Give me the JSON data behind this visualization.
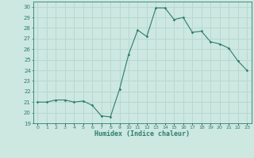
{
  "x": [
    0,
    1,
    2,
    3,
    4,
    5,
    6,
    7,
    8,
    9,
    10,
    11,
    12,
    13,
    14,
    15,
    16,
    17,
    18,
    19,
    20,
    21,
    22,
    23
  ],
  "y": [
    21.0,
    21.0,
    21.2,
    21.2,
    21.0,
    21.1,
    20.7,
    19.7,
    19.6,
    22.2,
    25.5,
    27.8,
    27.2,
    29.9,
    29.9,
    28.8,
    29.0,
    27.6,
    27.7,
    26.7,
    26.5,
    26.1,
    24.9,
    24.0
  ],
  "line_color": "#2e7d6e",
  "marker": "D",
  "marker_size": 1.8,
  "bg_color": "#cce8e0",
  "grid_color": "#b8d8d0",
  "xlabel": "Humidex (Indice chaleur)",
  "ylim": [
    19,
    30.5
  ],
  "yticks": [
    19,
    20,
    21,
    22,
    23,
    24,
    25,
    26,
    27,
    28,
    29,
    30
  ],
  "xlim": [
    -0.5,
    23.5
  ],
  "xtick_labels": [
    "0",
    "1",
    "2",
    "3",
    "4",
    "5",
    "6",
    "7",
    "8",
    "9",
    "10",
    "11",
    "12",
    "13",
    "14",
    "15",
    "16",
    "17",
    "18",
    "19",
    "20",
    "21",
    "22",
    "23"
  ]
}
